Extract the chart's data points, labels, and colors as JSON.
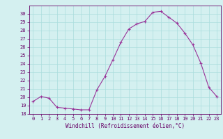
{
  "x": [
    0,
    1,
    2,
    3,
    4,
    5,
    6,
    7,
    8,
    9,
    10,
    11,
    12,
    13,
    14,
    15,
    16,
    17,
    18,
    19,
    20,
    21,
    22,
    23
  ],
  "y": [
    19.5,
    20.1,
    19.9,
    18.8,
    18.7,
    18.6,
    18.5,
    18.5,
    20.9,
    22.5,
    24.5,
    26.6,
    28.2,
    28.8,
    29.1,
    30.2,
    30.3,
    29.6,
    28.9,
    27.7,
    26.3,
    24.1,
    21.2,
    20.1
  ],
  "line_color": "#993399",
  "marker_color": "#993399",
  "bg_color": "#d4f0f0",
  "grid_color": "#aadddd",
  "xlabel": "Windchill (Refroidissement éolien,°C)",
  "ylim": [
    18,
    31
  ],
  "xlim_min": -0.5,
  "xlim_max": 23.5,
  "yticks": [
    18,
    19,
    20,
    21,
    22,
    23,
    24,
    25,
    26,
    27,
    28,
    29,
    30
  ],
  "xticks": [
    0,
    1,
    2,
    3,
    4,
    5,
    6,
    7,
    8,
    9,
    10,
    11,
    12,
    13,
    14,
    15,
    16,
    17,
    18,
    19,
    20,
    21,
    22,
    23
  ],
  "tick_fontsize": 5.0,
  "xlabel_fontsize": 5.5,
  "line_width": 0.8,
  "marker_size": 3.5
}
